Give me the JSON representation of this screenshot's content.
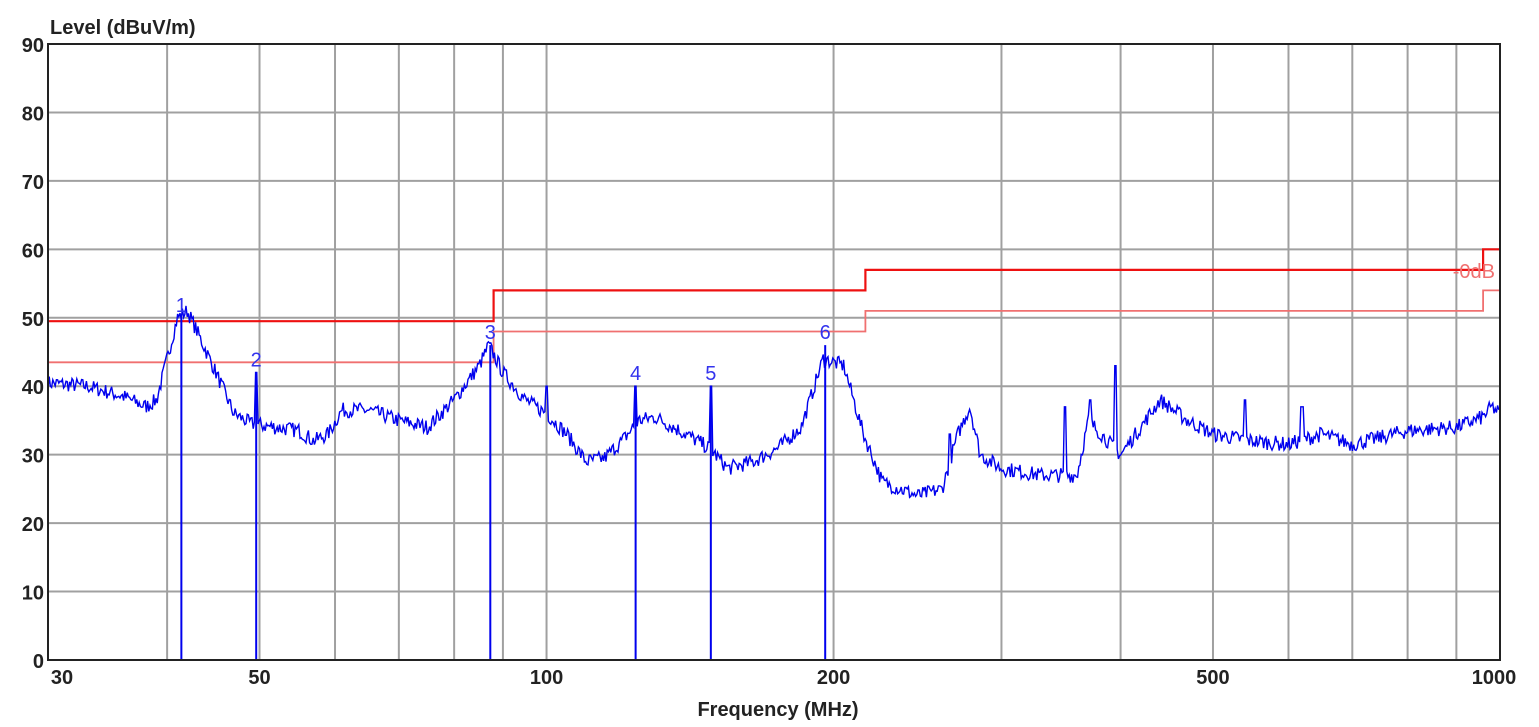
{
  "chart_data": {
    "type": "line",
    "ylabel": "Level (dBuV/m)",
    "xlabel": "Frequency (MHz)",
    "x_scale": "log",
    "xlim": [
      30,
      1000
    ],
    "ylim": [
      0,
      90
    ],
    "grid": true,
    "y_ticks": [
      0,
      10,
      20,
      30,
      40,
      50,
      60,
      70,
      80,
      90
    ],
    "x_ticks": [
      30,
      50,
      100,
      200,
      500,
      1000
    ],
    "x_gridlines": [
      30,
      40,
      50,
      60,
      70,
      80,
      90,
      100,
      200,
      300,
      400,
      500,
      600,
      700,
      800,
      900,
      1000
    ],
    "colors": {
      "trace": "#0000ee",
      "limit": "#ee1111",
      "limit_margin": "#f07070",
      "marker": "#3333ee",
      "grid": "#a0a0a0"
    },
    "limit_label": "-0dB",
    "limits": [
      {
        "points": [
          [
            30,
            49.5
          ],
          [
            88,
            49.5
          ],
          [
            88,
            54
          ],
          [
            216,
            54
          ],
          [
            216,
            57
          ],
          [
            960,
            57
          ],
          [
            960,
            60
          ],
          [
            1000,
            60
          ]
        ]
      },
      {
        "points": [
          [
            30,
            43.5
          ],
          [
            88,
            43.5
          ],
          [
            88,
            48
          ],
          [
            216,
            48
          ],
          [
            216,
            51
          ],
          [
            960,
            51
          ],
          [
            960,
            54
          ],
          [
            1000,
            54
          ]
        ]
      }
    ],
    "markers": [
      {
        "label": "1",
        "freq": 41.4,
        "level": 50
      },
      {
        "label": "2",
        "freq": 49.6,
        "level": 42
      },
      {
        "label": "3",
        "freq": 87.3,
        "level": 46
      },
      {
        "label": "4",
        "freq": 124,
        "level": 40
      },
      {
        "label": "5",
        "freq": 148.7,
        "level": 40
      },
      {
        "label": "6",
        "freq": 196,
        "level": 46
      }
    ],
    "trace": [
      [
        30,
        40.5
      ],
      [
        33,
        40
      ],
      [
        36,
        38.5
      ],
      [
        38,
        37
      ],
      [
        39,
        38
      ],
      [
        40,
        44
      ],
      [
        41,
        50
      ],
      [
        42,
        51
      ],
      [
        43,
        48
      ],
      [
        45,
        42
      ],
      [
        47,
        36
      ],
      [
        49,
        34.5
      ],
      [
        52,
        34
      ],
      [
        55,
        33.5
      ],
      [
        57,
        32
      ],
      [
        59,
        33
      ],
      [
        61,
        36.5
      ],
      [
        65,
        36.5
      ],
      [
        70,
        35
      ],
      [
        75,
        34
      ],
      [
        80,
        38
      ],
      [
        85,
        43
      ],
      [
        87,
        46
      ],
      [
        90,
        42
      ],
      [
        95,
        38
      ],
      [
        100,
        36
      ],
      [
        105,
        33
      ],
      [
        110,
        29
      ],
      [
        115,
        29.5
      ],
      [
        120,
        32
      ],
      [
        125,
        35
      ],
      [
        130,
        35.5
      ],
      [
        140,
        33
      ],
      [
        148,
        31
      ],
      [
        155,
        28
      ],
      [
        165,
        29
      ],
      [
        175,
        31
      ],
      [
        185,
        34
      ],
      [
        195,
        44
      ],
      [
        205,
        43
      ],
      [
        215,
        33
      ],
      [
        225,
        26
      ],
      [
        245,
        24
      ],
      [
        260,
        25
      ],
      [
        270,
        33
      ],
      [
        278,
        37
      ],
      [
        285,
        30
      ],
      [
        300,
        28
      ],
      [
        330,
        27
      ],
      [
        360,
        27
      ],
      [
        370,
        35
      ],
      [
        400,
        30
      ],
      [
        420,
        34
      ],
      [
        440,
        38
      ],
      [
        470,
        35
      ],
      [
        500,
        33
      ],
      [
        550,
        32
      ],
      [
        600,
        31.5
      ],
      [
        650,
        33
      ],
      [
        700,
        31.5
      ],
      [
        800,
        33.5
      ],
      [
        900,
        34
      ],
      [
        960,
        35.5
      ],
      [
        980,
        37
      ],
      [
        1000,
        36
      ]
    ],
    "spikes": [
      [
        49.6,
        42
      ],
      [
        100,
        40
      ],
      [
        124,
        40
      ],
      [
        148.7,
        40
      ],
      [
        265,
        33
      ],
      [
        350,
        37
      ],
      [
        372,
        38
      ],
      [
        395,
        43
      ],
      [
        540,
        38
      ],
      [
        620,
        37
      ]
    ]
  }
}
